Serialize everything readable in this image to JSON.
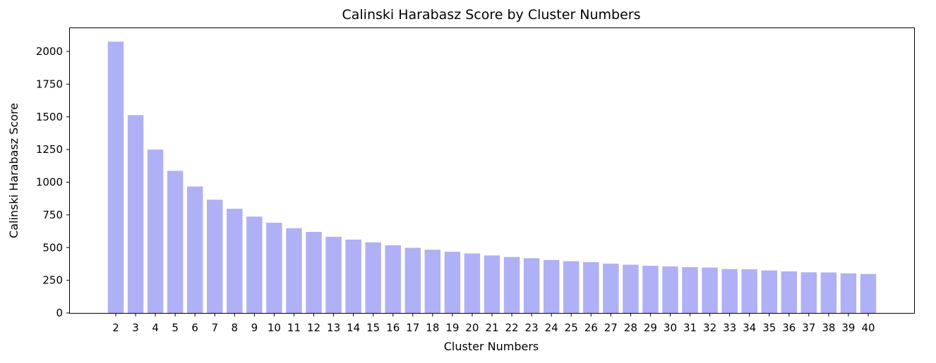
{
  "chart_data": {
    "type": "bar",
    "title": "Calinski Harabasz Score by Cluster Numbers",
    "xlabel": "Cluster Numbers",
    "ylabel": "Calinski Harabasz Score",
    "categories": [
      "2",
      "3",
      "4",
      "5",
      "6",
      "7",
      "8",
      "9",
      "10",
      "11",
      "12",
      "13",
      "14",
      "15",
      "16",
      "17",
      "18",
      "19",
      "20",
      "21",
      "22",
      "23",
      "24",
      "25",
      "26",
      "27",
      "28",
      "29",
      "30",
      "31",
      "32",
      "33",
      "34",
      "35",
      "36",
      "37",
      "38",
      "39",
      "40"
    ],
    "values": [
      2075,
      1513,
      1250,
      1087,
      967,
      866,
      797,
      737,
      690,
      648,
      620,
      583,
      561,
      540,
      518,
      498,
      484,
      468,
      455,
      440,
      428,
      419,
      405,
      396,
      389,
      377,
      369,
      361,
      356,
      350,
      347,
      336,
      334,
      325,
      318,
      311,
      310,
      303,
      298
    ],
    "yticks": [
      0,
      250,
      500,
      750,
      1000,
      1250,
      1500,
      1750,
      2000
    ],
    "ylim": [
      0,
      2178
    ],
    "bar_color": "#b0b0f6",
    "grid": false,
    "legend": "none"
  }
}
